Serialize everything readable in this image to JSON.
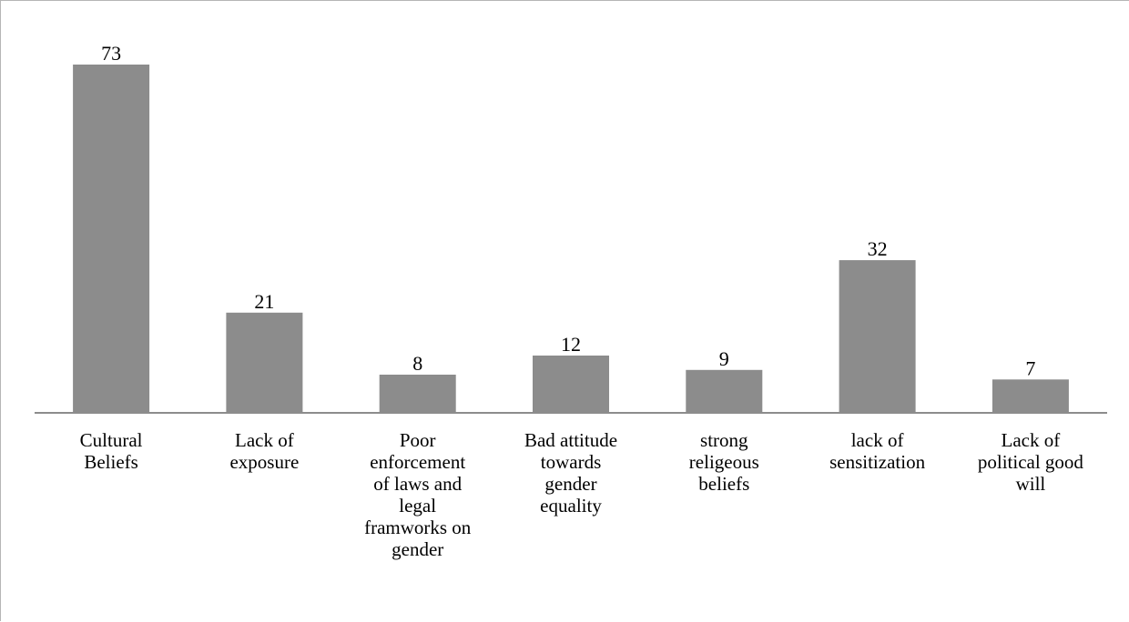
{
  "chart_data": {
    "type": "bar",
    "title": "",
    "xlabel": "",
    "ylabel": "",
    "categories": [
      "Cultural Beliefs",
      "Lack of exposure",
      "Poor enforcement of laws and legal framworks on gender",
      "Bad attitude towards gender equality",
      "strong religeous beliefs",
      "lack of sensitization",
      "Lack of political good will"
    ],
    "category_lines": [
      [
        "Cultural",
        "Beliefs"
      ],
      [
        "Lack of",
        "exposure"
      ],
      [
        "Poor",
        "enforcement",
        "of laws and",
        "legal",
        "framworks on",
        "gender"
      ],
      [
        "Bad attitude",
        "towards",
        "gender",
        "equality"
      ],
      [
        "strong",
        "religeous",
        "beliefs"
      ],
      [
        "lack of",
        "sensitization"
      ],
      [
        "Lack of",
        "political good",
        "will"
      ]
    ],
    "values": [
      73,
      21,
      8,
      12,
      9,
      32,
      7
    ],
    "ylim": [
      0,
      80
    ],
    "grid": false,
    "legend": "none",
    "data_labels": true,
    "bar_color": "#8c8c8c",
    "axis_color": "#8c8c8c",
    "text_color": "#000000"
  }
}
